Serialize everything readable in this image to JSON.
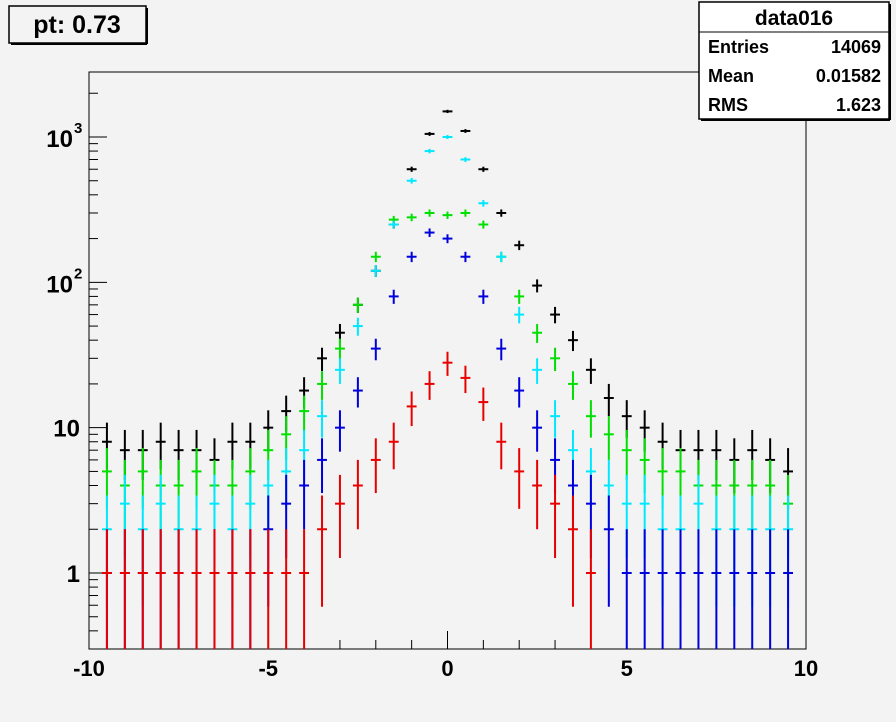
{
  "title_box": {
    "text": "pt: 0.73"
  },
  "stats_box": {
    "title": "data016",
    "rows": [
      {
        "label": "Entries",
        "value": "14069"
      },
      {
        "label": "Mean",
        "value": "0.01582"
      },
      {
        "label": "RMS",
        "value": "1.623"
      }
    ]
  },
  "colors": {
    "frame_bg": "#f3f3f3",
    "axis": "#000000"
  },
  "chart_data": {
    "type": "scatter",
    "title": "",
    "xlabel": "",
    "ylabel": "",
    "xlim": [
      -10,
      10
    ],
    "ylim": [
      0.3,
      2800
    ],
    "yscale": "log",
    "x_ticks": [
      {
        "v": -10,
        "label": "-10"
      },
      {
        "v": -5,
        "label": "-5"
      },
      {
        "v": 0,
        "label": "0"
      },
      {
        "v": 5,
        "label": "5"
      },
      {
        "v": 10,
        "label": "10"
      }
    ],
    "y_ticks": [
      {
        "v": 1,
        "base": "1",
        "exp": ""
      },
      {
        "v": 10,
        "base": "10",
        "exp": ""
      },
      {
        "v": 100,
        "base": "10",
        "exp": "2"
      },
      {
        "v": 1000,
        "base": "10",
        "exp": "3"
      }
    ],
    "bin_width": 0.5,
    "series": [
      {
        "color": "#000000",
        "x": [
          -9.5,
          -9,
          -8.5,
          -8,
          -7.5,
          -7,
          -6.5,
          -6,
          -5.5,
          -5,
          -4.5,
          -4,
          -3.5,
          -3,
          -2.5,
          -2,
          -1.5,
          -1,
          -0.5,
          0,
          0.5,
          1,
          1.5,
          2,
          2.5,
          3,
          3.5,
          4,
          4.5,
          5,
          5.5,
          6,
          6.5,
          7,
          7.5,
          8,
          8.5,
          9,
          9.5
        ],
        "y": [
          8,
          7,
          7,
          8,
          7,
          7,
          6,
          8,
          8,
          10,
          13,
          18,
          30,
          45,
          70,
          120,
          250,
          600,
          1050,
          1500,
          1100,
          600,
          300,
          180,
          95,
          60,
          40,
          25,
          16,
          12,
          10,
          8,
          7,
          7,
          7,
          6,
          7,
          6,
          5
        ]
      },
      {
        "color": "#00e000",
        "x": [
          -9.5,
          -9,
          -8.5,
          -8,
          -7.5,
          -7,
          -6.5,
          -6,
          -5.5,
          -5,
          -4.5,
          -4,
          -3.5,
          -3,
          -2.5,
          -2,
          -1.5,
          -1,
          -0.5,
          0,
          0.5,
          1,
          1.5,
          2,
          2.5,
          3,
          3.5,
          4,
          4.5,
          5,
          5.5,
          6,
          6.5,
          7,
          7.5,
          8,
          8.5,
          9,
          9.5
        ],
        "y": [
          5,
          4,
          5,
          4,
          4,
          5,
          4,
          4,
          5,
          7,
          9,
          13,
          20,
          35,
          70,
          150,
          270,
          280,
          300,
          290,
          300,
          250,
          150,
          80,
          45,
          30,
          20,
          12,
          9,
          7,
          6,
          5,
          5,
          4,
          4,
          4,
          4,
          4,
          3
        ]
      },
      {
        "color": "#00e8ff",
        "x": [
          -9.5,
          -9,
          -8.5,
          -8,
          -7.5,
          -7,
          -6.5,
          -6,
          -5.5,
          -5,
          -4.5,
          -4,
          -3.5,
          -3,
          -2.5,
          -2,
          -1.5,
          -1,
          -0.5,
          0,
          0.5,
          1,
          1.5,
          2,
          2.5,
          3,
          3.5,
          4,
          4.5,
          5,
          5.5,
          6,
          6.5,
          7,
          7.5,
          8,
          8.5,
          9,
          9.5
        ],
        "y": [
          2,
          3,
          2,
          3,
          2,
          2,
          3,
          2,
          3,
          4,
          5,
          7,
          12,
          25,
          50,
          120,
          250,
          500,
          800,
          1000,
          700,
          350,
          150,
          60,
          25,
          12,
          7,
          5,
          4,
          3,
          3,
          2,
          2,
          3,
          2,
          2,
          2,
          2,
          2
        ]
      },
      {
        "color": "#0000dd",
        "x": [
          -9.5,
          -9,
          -8.5,
          -8,
          -7.5,
          -7,
          -6.5,
          -6,
          -5.5,
          -5,
          -4.5,
          -4,
          -3.5,
          -3,
          -2.5,
          -2,
          -1.5,
          -1,
          -0.5,
          0,
          0.5,
          1,
          1.5,
          2,
          2.5,
          3,
          3.5,
          4,
          4.5,
          5,
          5.5,
          6,
          6.5,
          7,
          7.5,
          8,
          8.5,
          9,
          9.5
        ],
        "y": [
          1,
          1,
          1,
          1,
          1,
          1,
          1,
          1,
          1,
          2,
          3,
          4,
          6,
          10,
          18,
          35,
          80,
          150,
          220,
          200,
          150,
          80,
          35,
          18,
          10,
          6,
          4,
          3,
          2,
          1,
          1,
          1,
          1,
          1,
          1,
          1,
          1,
          1,
          1
        ]
      },
      {
        "color": "#e80000",
        "x": [
          -9.5,
          -9,
          -8.5,
          -8,
          -7.5,
          -7,
          -6.5,
          -6,
          -5.5,
          -5,
          -4.5,
          -4,
          -3.5,
          -3,
          -2.5,
          -2,
          -1.5,
          -1,
          -0.5,
          0,
          0.5,
          1,
          1.5,
          2,
          2.5,
          3,
          3.5,
          4
        ],
        "y": [
          1,
          1,
          1,
          1,
          1,
          1,
          1,
          1,
          1,
          1,
          1,
          1,
          2,
          3,
          4,
          6,
          8,
          14,
          20,
          28,
          22,
          15,
          8,
          5,
          4,
          3,
          2,
          1
        ]
      }
    ]
  }
}
